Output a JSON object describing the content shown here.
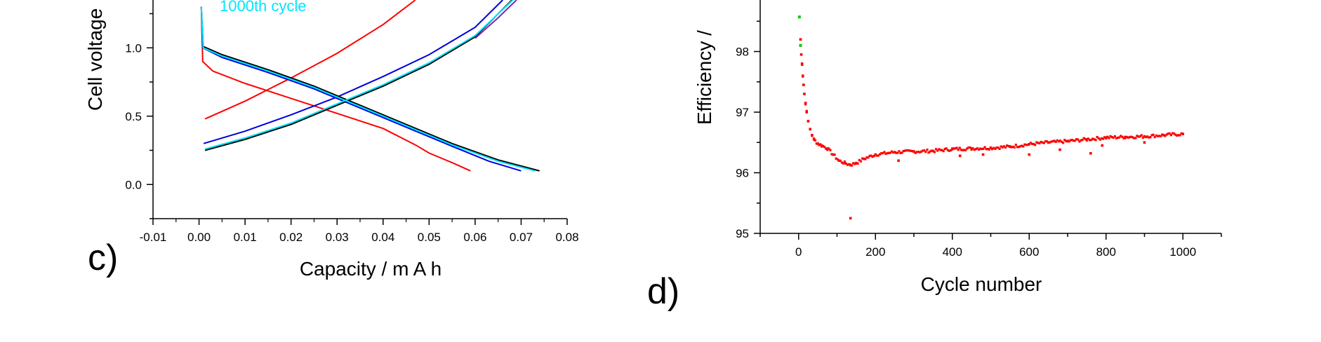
{
  "chart_data": [
    {
      "panel": "c)",
      "type": "line",
      "xlabel": "Capacity / m A h",
      "ylabel": "Cell voltage",
      "xlim": [
        -0.01,
        0.08
      ],
      "ylim": [
        -0.25,
        1.35
      ],
      "x_ticks": [
        "-0.01",
        "0.00",
        "0.01",
        "0.02",
        "0.03",
        "0.04",
        "0.05",
        "0.06",
        "0.07",
        "0.08"
      ],
      "y_ticks": [
        "0.0",
        "0.5",
        "1.0"
      ],
      "annotations": [
        {
          "text": "1000th cycle",
          "color": "#00e5ff"
        }
      ],
      "series": [
        {
          "color": "#ff0000",
          "discharge": [
            [
              0.0005,
              1.3
            ],
            [
              0.0008,
              0.9
            ],
            [
              0.003,
              0.83
            ],
            [
              0.01,
              0.74
            ],
            [
              0.02,
              0.63
            ],
            [
              0.03,
              0.52
            ],
            [
              0.04,
              0.41
            ],
            [
              0.047,
              0.29
            ],
            [
              0.05,
              0.23
            ],
            [
              0.055,
              0.16
            ],
            [
              0.059,
              0.1
            ]
          ],
          "charge": [
            [
              0.0013,
              0.48
            ],
            [
              0.01,
              0.61
            ],
            [
              0.02,
              0.78
            ],
            [
              0.03,
              0.96
            ],
            [
              0.04,
              1.17
            ],
            [
              0.047,
              1.35
            ]
          ]
        },
        {
          "color": "#0000dd",
          "discharge": [
            [
              0.0005,
              1.3
            ],
            [
              0.0008,
              1.0
            ],
            [
              0.005,
              0.93
            ],
            [
              0.015,
              0.82
            ],
            [
              0.025,
              0.7
            ],
            [
              0.035,
              0.56
            ],
            [
              0.045,
              0.42
            ],
            [
              0.055,
              0.28
            ],
            [
              0.063,
              0.17
            ],
            [
              0.07,
              0.1
            ]
          ],
          "charge": [
            [
              0.001,
              0.3
            ],
            [
              0.01,
              0.39
            ],
            [
              0.02,
              0.51
            ],
            [
              0.03,
              0.64
            ],
            [
              0.04,
              0.79
            ],
            [
              0.05,
              0.95
            ],
            [
              0.06,
              1.15
            ],
            [
              0.066,
              1.35
            ]
          ]
        },
        {
          "color": "#000000",
          "discharge": [
            [
              0.0005,
              1.3
            ],
            [
              0.0009,
              1.01
            ],
            [
              0.005,
              0.95
            ],
            [
              0.015,
              0.84
            ],
            [
              0.025,
              0.72
            ],
            [
              0.035,
              0.58
            ],
            [
              0.045,
              0.44
            ],
            [
              0.055,
              0.3
            ],
            [
              0.065,
              0.18
            ],
            [
              0.074,
              0.1
            ]
          ],
          "charge": [
            [
              0.0013,
              0.25
            ],
            [
              0.01,
              0.33
            ],
            [
              0.02,
              0.44
            ],
            [
              0.03,
              0.58
            ],
            [
              0.04,
              0.72
            ],
            [
              0.05,
              0.88
            ],
            [
              0.06,
              1.08
            ],
            [
              0.068,
              1.35
            ]
          ]
        },
        {
          "color": "#00e5ff",
          "discharge": [
            [
              0.0005,
              1.3
            ],
            [
              0.0009,
              1.0
            ],
            [
              0.005,
              0.94
            ],
            [
              0.015,
              0.83
            ],
            [
              0.025,
              0.71
            ],
            [
              0.035,
              0.57
            ],
            [
              0.045,
              0.43
            ],
            [
              0.055,
              0.29
            ],
            [
              0.065,
              0.17
            ],
            [
              0.073,
              0.1
            ]
          ],
          "charge": [
            [
              0.0013,
              0.26
            ],
            [
              0.01,
              0.34
            ],
            [
              0.02,
              0.45
            ],
            [
              0.03,
              0.59
            ],
            [
              0.04,
              0.73
            ],
            [
              0.05,
              0.89
            ],
            [
              0.06,
              1.09
            ],
            [
              0.0682,
              1.35
            ]
          ]
        },
        {
          "color": "#7b2ab8",
          "discharge": [],
          "charge": [
            [
              0.06,
              1.07
            ],
            [
              0.065,
              1.22
            ],
            [
              0.069,
              1.35
            ]
          ]
        }
      ]
    },
    {
      "panel": "d)",
      "type": "scatter",
      "xlabel": "Cycle number",
      "ylabel": "Efficiency /",
      "xlim": [
        -100,
        1100
      ],
      "ylim": [
        95,
        98.85
      ],
      "x_ticks": [
        "0",
        "200",
        "400",
        "600",
        "800",
        "1000"
      ],
      "y_ticks": [
        "95",
        "96",
        "97",
        "98"
      ],
      "points_red": [
        [
          5,
          98.2
        ],
        [
          7,
          97.95
        ],
        [
          9,
          97.8
        ],
        [
          11,
          97.6
        ],
        [
          13,
          97.45
        ],
        [
          15,
          97.3
        ],
        [
          18,
          97.15
        ],
        [
          21,
          97.0
        ],
        [
          25,
          96.85
        ],
        [
          30,
          96.72
        ],
        [
          35,
          96.62
        ],
        [
          40,
          96.55
        ],
        [
          50,
          96.48
        ],
        [
          60,
          96.45
        ],
        [
          75,
          96.4
        ],
        [
          90,
          96.3
        ],
        [
          105,
          96.2
        ],
        [
          120,
          96.16
        ],
        [
          135,
          96.13
        ],
        [
          150,
          96.16
        ],
        [
          170,
          96.23
        ],
        [
          200,
          96.3
        ],
        [
          250,
          96.34
        ],
        [
          300,
          96.35
        ],
        [
          350,
          96.36
        ],
        [
          400,
          96.39
        ],
        [
          450,
          96.4
        ],
        [
          500,
          96.41
        ],
        [
          550,
          96.43
        ],
        [
          600,
          96.47
        ],
        [
          650,
          96.5
        ],
        [
          700,
          96.52
        ],
        [
          750,
          96.55
        ],
        [
          800,
          96.58
        ],
        [
          850,
          96.59
        ],
        [
          900,
          96.6
        ],
        [
          950,
          96.62
        ],
        [
          1000,
          96.64
        ],
        [
          135,
          95.25
        ],
        [
          260,
          96.2
        ],
        [
          420,
          96.28
        ],
        [
          480,
          96.3
        ],
        [
          600,
          96.3
        ],
        [
          680,
          96.38
        ],
        [
          760,
          96.32
        ],
        [
          790,
          96.45
        ],
        [
          900,
          96.5
        ]
      ],
      "points_green": [
        [
          2,
          98.57
        ],
        [
          5,
          98.1
        ]
      ]
    }
  ],
  "panels": {
    "c": {
      "letter": "c)"
    },
    "d": {
      "letter": "d)"
    }
  }
}
